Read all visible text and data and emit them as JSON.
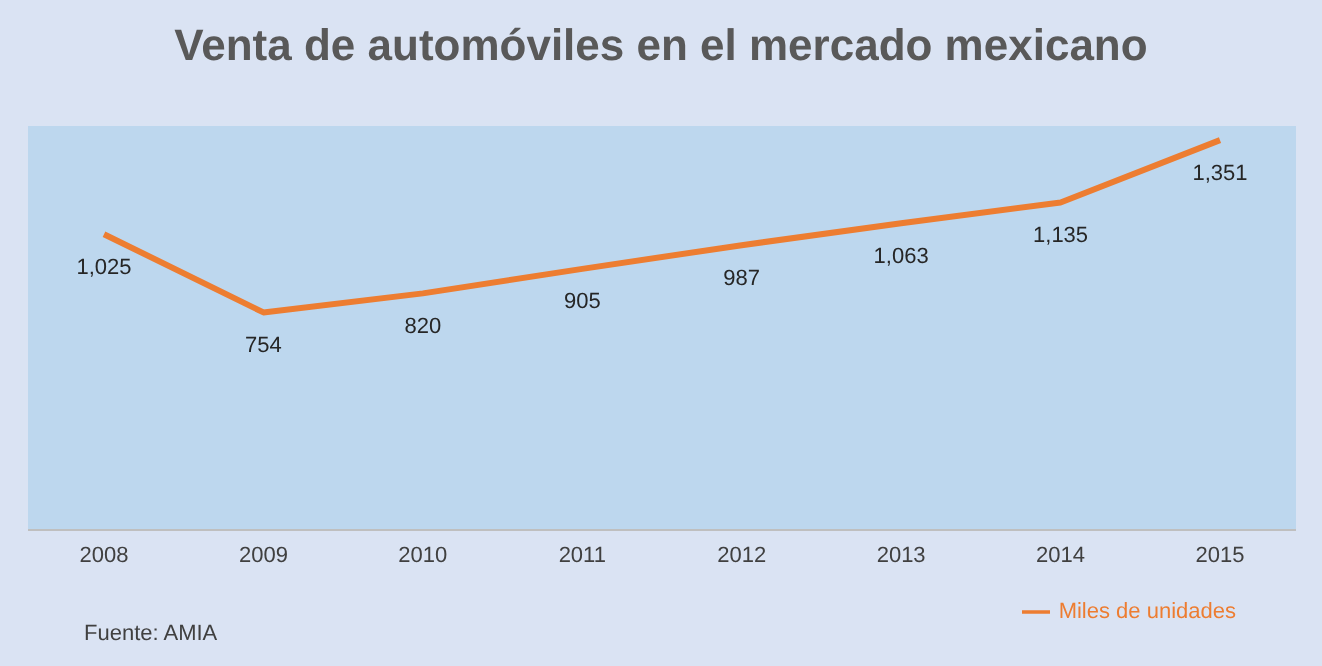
{
  "chart_data": {
    "type": "line",
    "title": "Venta de automóviles en el mercado mexicano",
    "categories": [
      "2008",
      "2009",
      "2010",
      "2011",
      "2012",
      "2013",
      "2014",
      "2015"
    ],
    "series": [
      {
        "name": "Miles de unidades",
        "color": "#ed7d31",
        "values": [
          1025,
          754,
          820,
          905,
          987,
          1063,
          1135,
          1351
        ],
        "value_labels": [
          "1,025",
          "754",
          "820",
          "905",
          "987",
          "1,063",
          "1,135",
          "1,351"
        ]
      }
    ],
    "legend": "bottom right",
    "marker": "none",
    "grid": false,
    "tick_labels": "x",
    "annotations": [
      "Fuente: AMIA"
    ]
  }
}
